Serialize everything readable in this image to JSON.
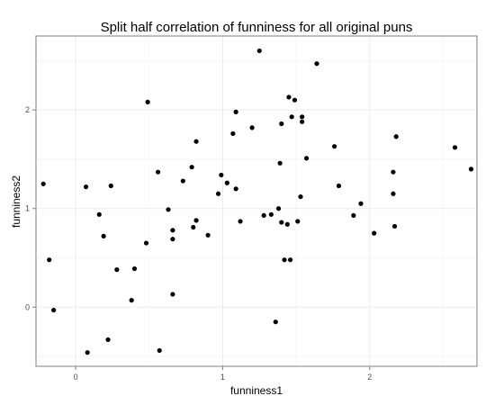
{
  "chart_data": {
    "type": "scatter",
    "title": "Split half correlation of funniness for all original puns",
    "xlabel": "funniness1",
    "ylabel": "funniness2",
    "xlim": [
      -0.27,
      2.73
    ],
    "ylim": [
      -0.6,
      2.75
    ],
    "xticks": [
      0,
      1,
      2
    ],
    "yticks": [
      0,
      1,
      2
    ],
    "xtick_labels": [
      "0",
      "1",
      "2"
    ],
    "ytick_labels": [
      "0",
      "1",
      "2"
    ],
    "grid": true,
    "point_color": "#000000",
    "points": [
      {
        "x": -0.22,
        "y": 1.25
      },
      {
        "x": -0.18,
        "y": 0.48
      },
      {
        "x": -0.15,
        "y": -0.03
      },
      {
        "x": 0.07,
        "y": 1.22
      },
      {
        "x": 0.08,
        "y": -0.46
      },
      {
        "x": 0.16,
        "y": 0.94
      },
      {
        "x": 0.19,
        "y": 0.72
      },
      {
        "x": 0.22,
        "y": -0.33
      },
      {
        "x": 0.24,
        "y": 1.23
      },
      {
        "x": 0.28,
        "y": 0.38
      },
      {
        "x": 0.38,
        "y": 0.07
      },
      {
        "x": 0.4,
        "y": 0.39
      },
      {
        "x": 0.48,
        "y": 0.65
      },
      {
        "x": 0.49,
        "y": 2.08
      },
      {
        "x": 0.56,
        "y": 1.37
      },
      {
        "x": 0.57,
        "y": -0.44
      },
      {
        "x": 0.63,
        "y": 0.99
      },
      {
        "x": 0.66,
        "y": 0.78
      },
      {
        "x": 0.66,
        "y": 0.69
      },
      {
        "x": 0.66,
        "y": 0.13
      },
      {
        "x": 0.73,
        "y": 1.28
      },
      {
        "x": 0.79,
        "y": 1.42
      },
      {
        "x": 0.8,
        "y": 0.81
      },
      {
        "x": 0.82,
        "y": 0.88
      },
      {
        "x": 0.82,
        "y": 1.68
      },
      {
        "x": 0.9,
        "y": 0.73
      },
      {
        "x": 0.97,
        "y": 1.15
      },
      {
        "x": 0.99,
        "y": 1.34
      },
      {
        "x": 1.03,
        "y": 1.26
      },
      {
        "x": 1.07,
        "y": 1.76
      },
      {
        "x": 1.09,
        "y": 1.2
      },
      {
        "x": 1.09,
        "y": 1.98
      },
      {
        "x": 1.12,
        "y": 0.87
      },
      {
        "x": 1.2,
        "y": 1.82
      },
      {
        "x": 1.25,
        "y": 2.6
      },
      {
        "x": 1.28,
        "y": 0.93
      },
      {
        "x": 1.33,
        "y": 0.94
      },
      {
        "x": 1.36,
        "y": -0.15
      },
      {
        "x": 1.38,
        "y": 1.0
      },
      {
        "x": 1.39,
        "y": 1.46
      },
      {
        "x": 1.4,
        "y": 1.86
      },
      {
        "x": 1.4,
        "y": 0.86
      },
      {
        "x": 1.42,
        "y": 0.48
      },
      {
        "x": 1.44,
        "y": 0.84
      },
      {
        "x": 1.45,
        "y": 2.13
      },
      {
        "x": 1.46,
        "y": 0.48
      },
      {
        "x": 1.47,
        "y": 1.93
      },
      {
        "x": 1.49,
        "y": 2.1
      },
      {
        "x": 1.51,
        "y": 0.87
      },
      {
        "x": 1.53,
        "y": 1.12
      },
      {
        "x": 1.54,
        "y": 1.93
      },
      {
        "x": 1.54,
        "y": 1.88
      },
      {
        "x": 1.57,
        "y": 1.51
      },
      {
        "x": 1.64,
        "y": 2.47
      },
      {
        "x": 1.76,
        "y": 1.63
      },
      {
        "x": 1.79,
        "y": 1.23
      },
      {
        "x": 1.89,
        "y": 0.93
      },
      {
        "x": 1.94,
        "y": 1.05
      },
      {
        "x": 2.03,
        "y": 0.75
      },
      {
        "x": 2.16,
        "y": 1.37
      },
      {
        "x": 2.16,
        "y": 1.15
      },
      {
        "x": 2.17,
        "y": 0.82
      },
      {
        "x": 2.18,
        "y": 1.73
      },
      {
        "x": 2.58,
        "y": 1.62
      },
      {
        "x": 2.69,
        "y": 1.4
      }
    ]
  }
}
